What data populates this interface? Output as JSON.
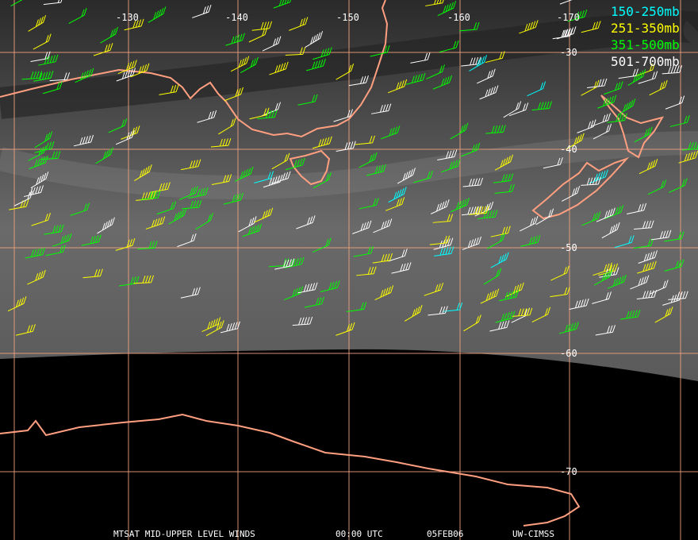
{
  "map": {
    "legend": [
      {
        "label": "150-250mb",
        "color": "#00ffff"
      },
      {
        "label": "251-350mb",
        "color": "#ffff00"
      },
      {
        "label": "351-500mb",
        "color": "#00ff00"
      },
      {
        "label": "501-700mb",
        "color": "#ffffff"
      }
    ],
    "longitude_labels": [
      "-130",
      "-140",
      "-150",
      "-160",
      "-170"
    ],
    "latitude_labels": [
      "-30",
      "-40",
      "-50",
      "-60",
      "-70"
    ],
    "footer": [
      "MTSAT MID-UPPER LEVEL WINDS",
      "00:00 UTC",
      "05FEB06",
      "UW-CIMSS"
    ]
  }
}
